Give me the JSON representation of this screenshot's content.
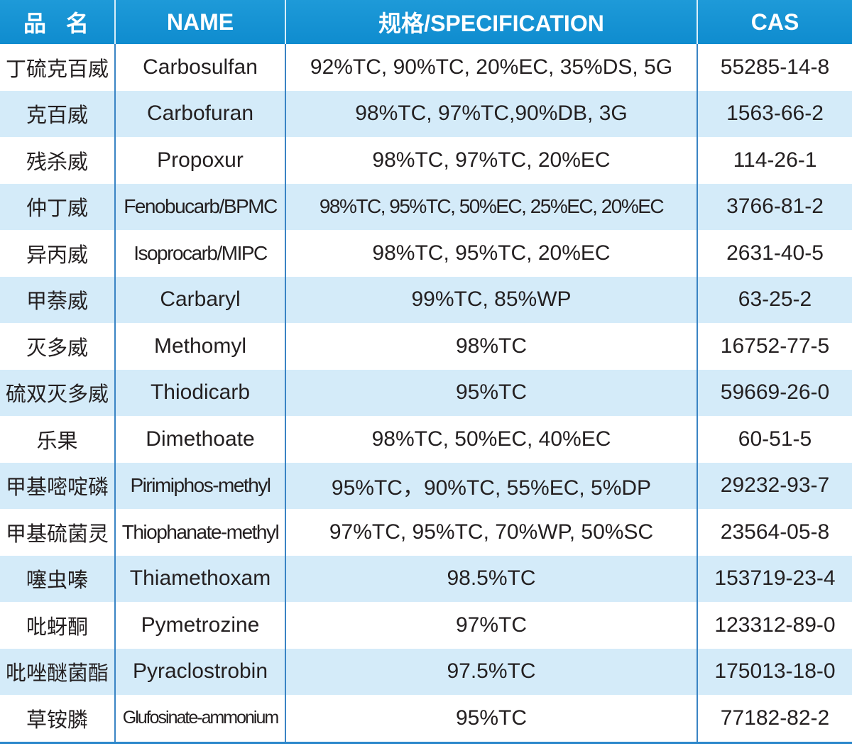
{
  "table": {
    "headers": [
      "品名",
      "NAME",
      "规格/SPECIFICATION",
      "CAS"
    ],
    "rows": [
      {
        "cn": "丁硫克百威",
        "name": "Carbosulfan",
        "spec": "92%TC, 90%TC, 20%EC, 35%DS, 5G",
        "cas": "55285-14-8"
      },
      {
        "cn": "克百威",
        "name": "Carbofuran",
        "spec": "98%TC, 97%TC,90%DB, 3G",
        "cas": "1563-66-2"
      },
      {
        "cn": "残杀威",
        "name": "Propoxur",
        "spec": "98%TC, 97%TC, 20%EC",
        "cas": "114-26-1"
      },
      {
        "cn": "仲丁威",
        "name": "Fenobucarb/BPMC",
        "spec": "98%TC, 95%TC, 50%EC, 25%EC, 20%EC",
        "cas": "3766-81-2"
      },
      {
        "cn": "异丙威",
        "name": "Isoprocarb/MIPC",
        "spec": "98%TC, 95%TC, 20%EC",
        "cas": "2631-40-5"
      },
      {
        "cn": "甲萘威",
        "name": "Carbaryl",
        "spec": "99%TC, 85%WP",
        "cas": "63-25-2"
      },
      {
        "cn": "灭多威",
        "name": "Methomyl",
        "spec": "98%TC",
        "cas": "16752-77-5"
      },
      {
        "cn": "硫双灭多威",
        "name": "Thiodicarb",
        "spec": "95%TC",
        "cas": "59669-26-0"
      },
      {
        "cn": "乐果",
        "name": "Dimethoate",
        "spec": "98%TC, 50%EC, 40%EC",
        "cas": "60-51-5"
      },
      {
        "cn": "甲基嘧啶磷",
        "name": "Pirimiphos-methyl",
        "spec": "95%TC，90%TC, 55%EC, 5%DP",
        "cas": "29232-93-7"
      },
      {
        "cn": "甲基硫菌灵",
        "name": "Thiophanate-methyl",
        "spec": "97%TC, 95%TC, 70%WP, 50%SC",
        "cas": "23564-05-8"
      },
      {
        "cn": "噻虫嗪",
        "name": "Thiamethoxam",
        "spec": "98.5%TC",
        "cas": "153719-23-4"
      },
      {
        "cn": "吡蚜酮",
        "name": "Pymetrozine",
        "spec": "97%TC",
        "cas": "123312-89-0"
      },
      {
        "cn": "吡唑醚菌酯",
        "name": "Pyraclostrobin",
        "spec": "97.5%TC",
        "cas": "175013-18-0"
      },
      {
        "cn": "草铵膦",
        "name": "Glufosinate-ammonium",
        "spec": "95%TC",
        "cas": "77182-82-2"
      }
    ]
  },
  "colors": {
    "header": "#1593d3",
    "alt_row": "#d4ebf9",
    "divider": "#3a84c4"
  }
}
